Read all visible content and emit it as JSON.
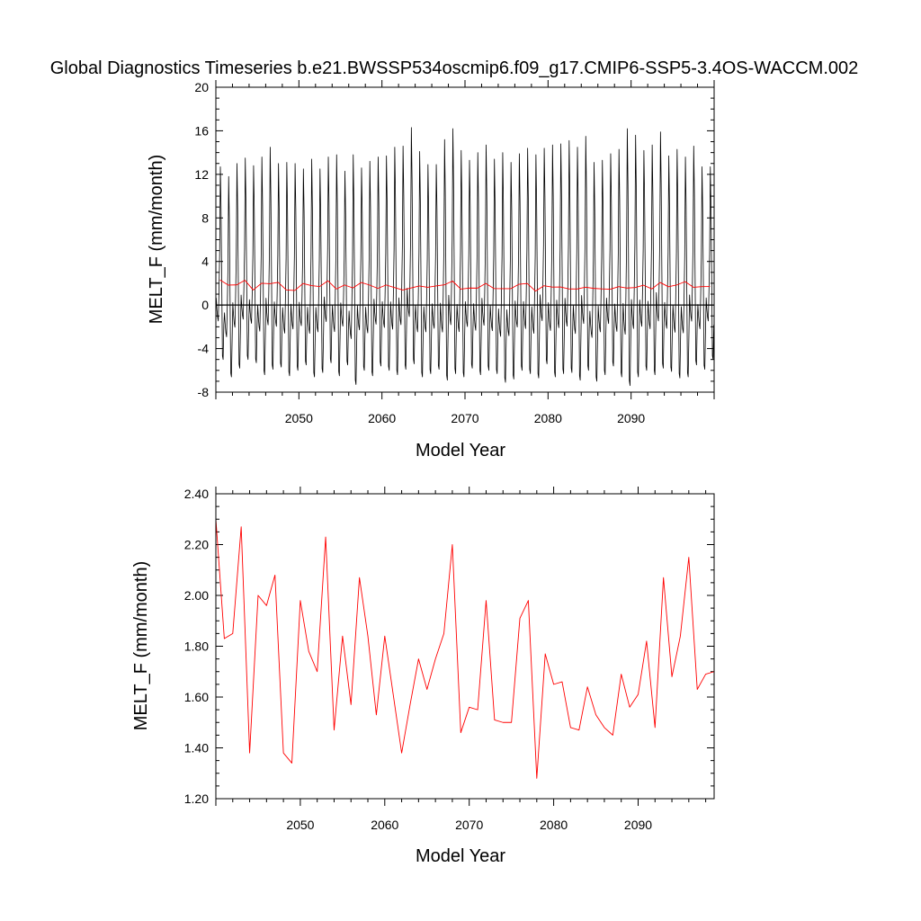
{
  "figure": {
    "title": "Global Diagnostics Timeseries b.e21.BWSSP534oscmip6.f09_g17.CMIP6-SSP5-3.4OS-WACCM.002"
  },
  "colors": {
    "monthly": "#000000",
    "annual": "#ff0000",
    "zero_line": "#000000"
  },
  "chart_data": [
    {
      "type": "line",
      "title": "",
      "xlabel": "Model Year",
      "ylabel": "MELT_F (mm/month)",
      "xlim": [
        2040,
        2100
      ],
      "ylim": [
        -8,
        20
      ],
      "x_ticks": [
        "2050",
        "2060",
        "2070",
        "2080",
        "2090"
      ],
      "y_ticks": [
        "-8",
        "-4",
        "0",
        "4",
        "8",
        "12",
        "16",
        "20"
      ],
      "zero_line": true,
      "series": [
        {
          "name": "",
          "color": "#000000",
          "kind": "monthly_seasonal_cycle",
          "start": 2040,
          "end": 2100,
          "annual_peaks": [
            12.7,
            11.8,
            13.0,
            13.5,
            12.8,
            13.6,
            14.5,
            13.0,
            13.1,
            13.0,
            12.5,
            13.4,
            12.5,
            13.6,
            13.8,
            12.3,
            13.8,
            12.6,
            13.2,
            13.6,
            13.7,
            14.5,
            14.6,
            16.3,
            14.1,
            12.9,
            12.9,
            15.2,
            16.2,
            14.2,
            13.3,
            14.0,
            14.7,
            13.4,
            14.0,
            13.1,
            13.9,
            14.4,
            13.8,
            14.4,
            14.7,
            14.8,
            15.1,
            14.5,
            15.5,
            13.1,
            13.3,
            13.9,
            14.3,
            16.2,
            15.6,
            14.2,
            14.7,
            15.9,
            13.7,
            14.3,
            13.6,
            14.6,
            12.7,
            12.7
          ],
          "annual_troughs": [
            -5.0,
            -6.6,
            -5.8,
            -5.0,
            -5.3,
            -6.4,
            -5.9,
            -5.7,
            -6.5,
            -6.0,
            -5.5,
            -6.6,
            -6.2,
            -5.3,
            -6.5,
            -5.5,
            -7.3,
            -6.0,
            -6.5,
            -5.6,
            -6.0,
            -6.4,
            -5.9,
            -5.4,
            -6.6,
            -6.3,
            -5.9,
            -6.9,
            -6.3,
            -6.6,
            -5.8,
            -6.4,
            -6.0,
            -6.3,
            -7.1,
            -6.8,
            -6.0,
            -6.3,
            -6.7,
            -5.4,
            -6.6,
            -6.3,
            -6.2,
            -6.9,
            -6.0,
            -7.0,
            -6.4,
            -5.6,
            -6.6,
            -7.4,
            -6.6,
            -6.0,
            -6.4,
            -5.8,
            -6.1,
            -6.7,
            -6.6,
            -5.5,
            -5.9,
            -5.0
          ]
        },
        {
          "name": "",
          "color": "#ff0000",
          "kind": "annual_mean",
          "x": [
            2040.5,
            2041.5,
            2042.5,
            2043.5,
            2044.5,
            2045.5,
            2046.5,
            2047.5,
            2048.5,
            2049.5,
            2050.5,
            2051.5,
            2052.5,
            2053.5,
            2054.5,
            2055.5,
            2056.5,
            2057.5,
            2058.5,
            2059.5,
            2060.5,
            2061.5,
            2062.5,
            2063.5,
            2064.5,
            2065.5,
            2066.5,
            2067.5,
            2068.5,
            2069.5,
            2070.5,
            2071.5,
            2072.5,
            2073.5,
            2074.5,
            2075.5,
            2076.5,
            2077.5,
            2078.5,
            2079.5,
            2080.5,
            2081.5,
            2082.5,
            2083.5,
            2084.5,
            2085.5,
            2086.5,
            2087.5,
            2088.5,
            2089.5,
            2090.5,
            2091.5,
            2092.5,
            2093.5,
            2094.5,
            2095.5,
            2096.5,
            2097.5,
            2098.5,
            2099.5
          ],
          "values": [
            2.3,
            1.83,
            1.85,
            2.27,
            1.38,
            2.0,
            1.96,
            2.08,
            1.38,
            1.34,
            1.98,
            1.78,
            1.7,
            2.23,
            1.47,
            1.84,
            1.57,
            2.07,
            1.84,
            1.53,
            1.84,
            1.61,
            1.38,
            1.57,
            1.75,
            1.63,
            1.75,
            1.85,
            2.2,
            1.46,
            1.56,
            1.55,
            1.98,
            1.51,
            1.5,
            1.5,
            1.91,
            1.98,
            1.28,
            1.77,
            1.65,
            1.66,
            1.48,
            1.47,
            1.64,
            1.53,
            1.48,
            1.45,
            1.69,
            1.56,
            1.61,
            1.82,
            1.48,
            2.07,
            1.68,
            1.84,
            2.15,
            1.63,
            1.69,
            1.7
          ]
        }
      ]
    },
    {
      "type": "line",
      "title": "",
      "xlabel": "Model Year",
      "ylabel": "MELT_F (mm/month)",
      "xlim": [
        2040,
        2099
      ],
      "ylim": [
        1.2,
        2.4
      ],
      "x_ticks": [
        "2050",
        "2060",
        "2070",
        "2080",
        "2090"
      ],
      "y_ticks": [
        "1.20",
        "1.40",
        "1.60",
        "1.80",
        "2.00",
        "2.20",
        "2.40"
      ],
      "series": [
        {
          "name": "",
          "color": "#ff0000",
          "kind": "annual_mean",
          "x": [
            2040,
            2041,
            2042,
            2043,
            2044,
            2045,
            2046,
            2047,
            2048,
            2049,
            2050,
            2051,
            2052,
            2053,
            2054,
            2055,
            2056,
            2057,
            2058,
            2059,
            2060,
            2061,
            2062,
            2063,
            2064,
            2065,
            2066,
            2067,
            2068,
            2069,
            2070,
            2071,
            2072,
            2073,
            2074,
            2075,
            2076,
            2077,
            2078,
            2079,
            2080,
            2081,
            2082,
            2083,
            2084,
            2085,
            2086,
            2087,
            2088,
            2089,
            2090,
            2091,
            2092,
            2093,
            2094,
            2095,
            2096,
            2097,
            2098,
            2099
          ],
          "values": [
            2.3,
            1.83,
            1.85,
            2.27,
            1.38,
            2.0,
            1.96,
            2.08,
            1.38,
            1.34,
            1.98,
            1.78,
            1.7,
            2.23,
            1.47,
            1.84,
            1.57,
            2.07,
            1.84,
            1.53,
            1.84,
            1.61,
            1.38,
            1.57,
            1.75,
            1.63,
            1.75,
            1.85,
            2.2,
            1.46,
            1.56,
            1.55,
            1.98,
            1.51,
            1.5,
            1.5,
            1.91,
            1.98,
            1.28,
            1.77,
            1.65,
            1.66,
            1.48,
            1.47,
            1.64,
            1.53,
            1.48,
            1.45,
            1.69,
            1.56,
            1.61,
            1.82,
            1.48,
            2.07,
            1.68,
            1.84,
            2.15,
            1.63,
            1.69,
            1.7
          ]
        }
      ]
    }
  ]
}
